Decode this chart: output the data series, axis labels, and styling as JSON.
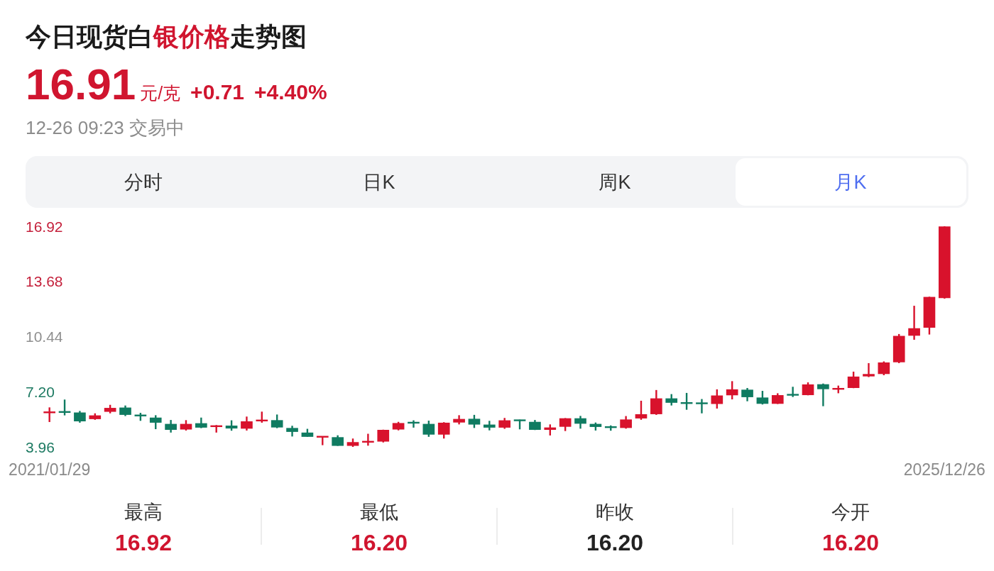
{
  "chart_data": {
    "type": "candlestick",
    "title": "今日现货白银价格走势图",
    "annotations": [
      "16.91",
      "元/克",
      "+0.71",
      "+4.40%",
      "12-26 09:23 交易中",
      "分时",
      "日K",
      "周K",
      "月K",
      "最高",
      "16.92",
      "最低",
      "16.20",
      "昨收",
      "16.20",
      "今开",
      "16.20"
    ],
    "categories": [
      "2021/01/29",
      null,
      null,
      null,
      null,
      null,
      null,
      null,
      null,
      null,
      null,
      null,
      null,
      null,
      null,
      null,
      null,
      null,
      null,
      null,
      null,
      null,
      null,
      null,
      null,
      null,
      null,
      null,
      null,
      null,
      null,
      null,
      null,
      null,
      null,
      null,
      null,
      null,
      null,
      null,
      null,
      null,
      null,
      null,
      null,
      null,
      null,
      null,
      null,
      null,
      null,
      null,
      null,
      null,
      null,
      null,
      null,
      null,
      null,
      "2025/12/26"
    ],
    "ohlc": [
      [
        5.98,
        6.28,
        5.42,
        6.0
      ],
      [
        6.04,
        6.74,
        5.81,
        5.98
      ],
      [
        5.98,
        6.07,
        5.38,
        5.46
      ],
      [
        5.59,
        5.93,
        5.55,
        5.81
      ],
      [
        6.02,
        6.43,
        5.93,
        6.25
      ],
      [
        6.27,
        6.39,
        5.77,
        5.84
      ],
      [
        5.82,
        5.96,
        5.49,
        5.79
      ],
      [
        5.68,
        5.82,
        5.0,
        5.38
      ],
      [
        5.31,
        5.54,
        4.8,
        4.96
      ],
      [
        4.98,
        5.53,
        4.92,
        5.31
      ],
      [
        5.35,
        5.68,
        5.06,
        5.09
      ],
      [
        5.16,
        5.24,
        4.8,
        5.19
      ],
      [
        5.21,
        5.52,
        4.91,
        5.04
      ],
      [
        5.03,
        5.74,
        4.92,
        5.46
      ],
      [
        5.5,
        6.03,
        5.38,
        5.52
      ],
      [
        5.53,
        5.86,
        5.06,
        5.1
      ],
      [
        5.07,
        5.2,
        4.57,
        4.84
      ],
      [
        4.8,
        5.02,
        4.55,
        4.55
      ],
      [
        4.55,
        4.57,
        4.06,
        4.56
      ],
      [
        4.53,
        4.64,
        4.02,
        4.02
      ],
      [
        4.02,
        4.45,
        3.96,
        4.24
      ],
      [
        4.25,
        4.73,
        4.03,
        4.27
      ],
      [
        4.27,
        4.97,
        4.22,
        4.96
      ],
      [
        4.98,
        5.43,
        4.93,
        5.36
      ],
      [
        5.39,
        5.52,
        5.09,
        5.37
      ],
      [
        5.31,
        5.5,
        4.55,
        4.68
      ],
      [
        4.68,
        5.41,
        4.45,
        5.38
      ],
      [
        5.39,
        5.82,
        5.28,
        5.6
      ],
      [
        5.61,
        5.84,
        5.07,
        5.27
      ],
      [
        5.27,
        5.49,
        4.93,
        5.09
      ],
      [
        5.09,
        5.66,
        5.02,
        5.52
      ],
      [
        5.53,
        5.56,
        4.99,
        5.51
      ],
      [
        5.43,
        5.54,
        4.95,
        4.96
      ],
      [
        4.96,
        5.28,
        4.63,
        5.1
      ],
      [
        5.14,
        5.65,
        4.89,
        5.64
      ],
      [
        5.64,
        5.78,
        5.03,
        5.32
      ],
      [
        5.31,
        5.39,
        4.92,
        5.13
      ],
      [
        5.13,
        5.22,
        4.91,
        5.11
      ],
      [
        5.07,
        5.77,
        5.03,
        5.57
      ],
      [
        5.63,
        6.67,
        5.55,
        5.88
      ],
      [
        5.88,
        7.3,
        5.84,
        6.81
      ],
      [
        6.81,
        7.06,
        6.39,
        6.55
      ],
      [
        6.54,
        7.13,
        6.14,
        6.53
      ],
      [
        6.53,
        6.77,
        5.93,
        6.51
      ],
      [
        6.48,
        7.34,
        6.21,
        6.98
      ],
      [
        6.99,
        7.82,
        6.75,
        7.34
      ],
      [
        7.32,
        7.42,
        6.64,
        6.88
      ],
      [
        6.86,
        7.25,
        6.45,
        6.49
      ],
      [
        6.49,
        7.11,
        6.48,
        7.0
      ],
      [
        7.03,
        7.49,
        6.89,
        7.01
      ],
      [
        7.0,
        7.75,
        6.99,
        7.63
      ],
      [
        7.64,
        7.68,
        6.35,
        7.35
      ],
      [
        7.36,
        7.56,
        7.11,
        7.38
      ],
      [
        7.42,
        8.38,
        7.41,
        8.09
      ],
      [
        8.1,
        8.88,
        8.06,
        8.24
      ],
      [
        8.24,
        8.98,
        8.17,
        8.92
      ],
      [
        8.93,
        10.59,
        8.88,
        10.48
      ],
      [
        10.49,
        12.25,
        10.25,
        10.93
      ],
      [
        10.96,
        12.78,
        10.56,
        12.77
      ],
      [
        12.7,
        16.92,
        12.67,
        16.91
      ]
    ],
    "colors": [
      "#d8122c",
      "#0f7b61",
      "#0f7b61",
      "#d8122c",
      "#d8122c",
      "#0f7b61",
      "#0f7b61",
      "#0f7b61",
      "#0f7b61",
      "#d8122c",
      "#0f7b61",
      "#d8122c",
      "#0f7b61",
      "#d8122c",
      "#d8122c",
      "#0f7b61",
      "#0f7b61",
      "#0f7b61",
      "#d8122c",
      "#0f7b61",
      "#d8122c",
      "#d8122c",
      "#d8122c",
      "#d8122c",
      "#0f7b61",
      "#0f7b61",
      "#d8122c",
      "#d8122c",
      "#0f7b61",
      "#0f7b61",
      "#d8122c",
      "#0f7b61",
      "#0f7b61",
      "#d8122c",
      "#d8122c",
      "#0f7b61",
      "#0f7b61",
      "#0f7b61",
      "#d8122c",
      "#d8122c",
      "#d8122c",
      "#0f7b61",
      "#0f7b61",
      "#0f7b61",
      "#d8122c",
      "#d8122c",
      "#0f7b61",
      "#0f7b61",
      "#d8122c",
      "#0f7b61",
      "#d8122c",
      "#0f7b61",
      "#d8122c",
      "#d8122c",
      "#d8122c",
      "#d8122c",
      "#d8122c",
      "#d8122c",
      "#d8122c",
      "#d8122c"
    ],
    "ylim": [
      3.96,
      16.92
    ],
    "yticks": [
      3.96,
      {
        "value": 7.2,
        "label": "7.20"
      },
      10.44,
      13.68,
      16.92
    ]
  }
}
